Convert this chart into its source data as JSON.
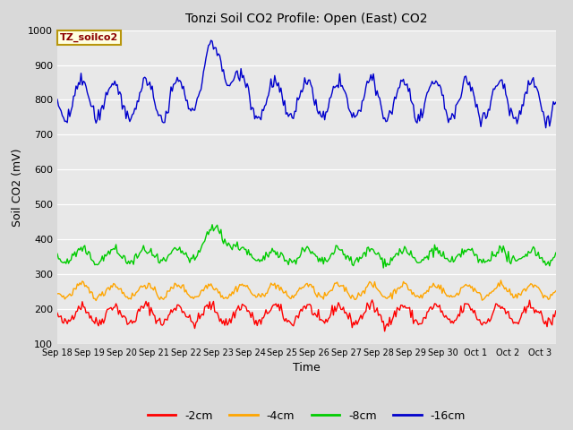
{
  "title": "Tonzi Soil CO2 Profile: Open (East) CO2",
  "ylabel": "Soil CO2 (mV)",
  "xlabel": "Time",
  "ylim": [
    100,
    1000
  ],
  "fig_bg_color": "#d9d9d9",
  "plot_bg_color": "#e8e8e8",
  "legend_label": "TZ_soilco2",
  "series": {
    "-2cm": {
      "color": "#ff0000"
    },
    "-4cm": {
      "color": "#ffa500"
    },
    "-8cm": {
      "color": "#00cc00"
    },
    "-16cm": {
      "color": "#0000cc"
    }
  },
  "xtick_labels": [
    "Sep 18",
    "Sep 19",
    "Sep 20",
    "Sep 21",
    "Sep 22",
    "Sep 23",
    "Sep 24",
    "Sep 25",
    "Sep 26",
    "Sep 27",
    "Sep 28",
    "Sep 29",
    "Sep 30",
    "Oct 1",
    "Oct 2",
    "Oct 3"
  ],
  "ytick_labels": [
    100,
    200,
    300,
    400,
    500,
    600,
    700,
    800,
    900,
    1000
  ],
  "n_points": 400,
  "n_days": 15.5,
  "seed": 42
}
